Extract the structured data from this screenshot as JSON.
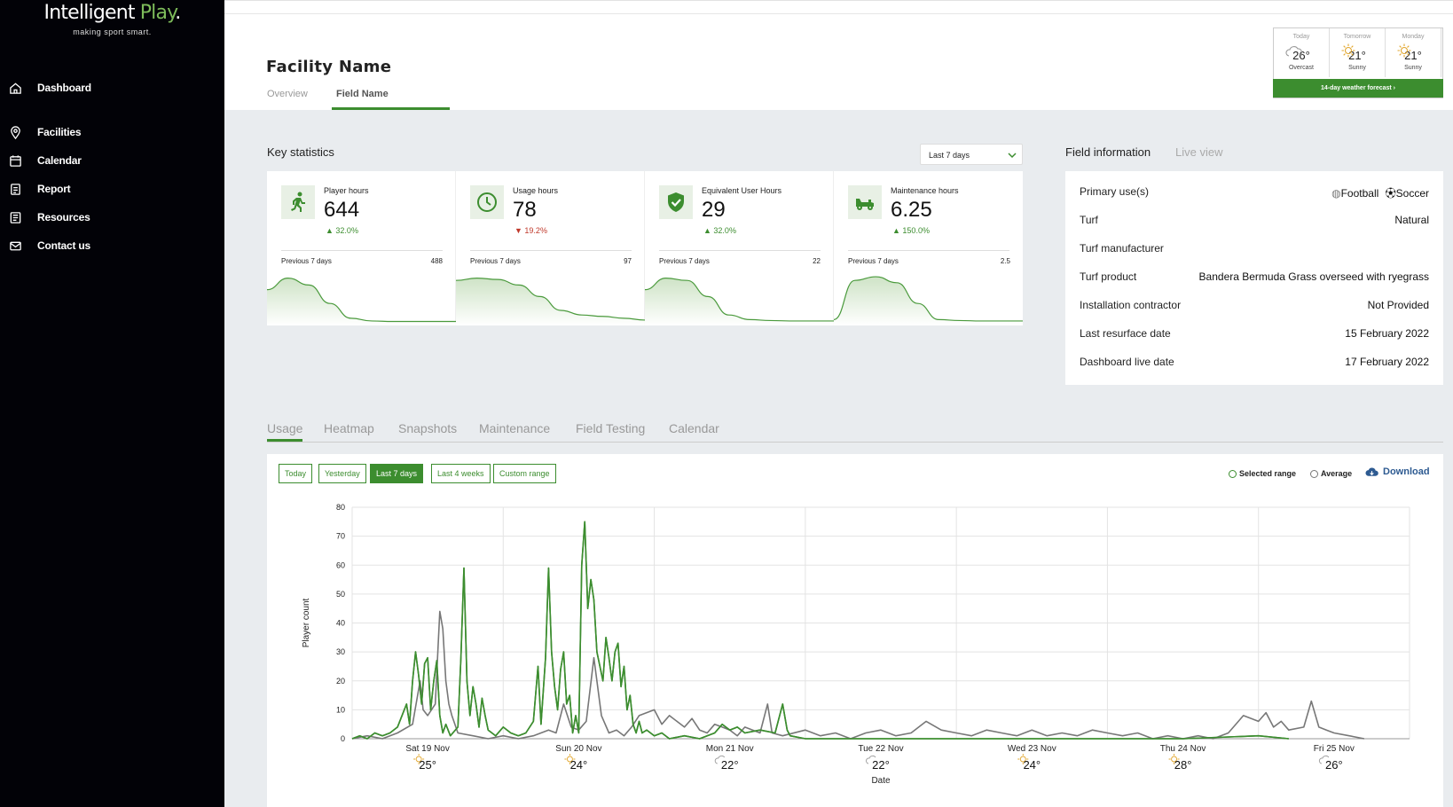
{
  "brand": {
    "name_main": "Intelligent",
    "name_accent": "Play",
    "name_dot": ".",
    "tagline": "making sport smart."
  },
  "nav": [
    {
      "label": "Dashboard",
      "icon": "home-icon"
    },
    {
      "label": "Facilities",
      "icon": "map-pin-icon"
    },
    {
      "label": "Calendar",
      "icon": "calendar-icon"
    },
    {
      "label": "Report",
      "icon": "report-icon"
    },
    {
      "label": "Resources",
      "icon": "resources-icon"
    },
    {
      "label": "Contact us",
      "icon": "mail-icon"
    }
  ],
  "header": {
    "facility_name": "Facility Name",
    "tabs": [
      {
        "label": "Overview"
      },
      {
        "label": "Field Name"
      }
    ],
    "active_tab": "Field Name"
  },
  "weather": {
    "days": [
      {
        "day": "Today",
        "temp": "26°",
        "condition": "Overcast",
        "icon": "cloud-icon"
      },
      {
        "day": "Tomorrow",
        "temp": "21°",
        "condition": "Sunny",
        "icon": "sun-icon"
      },
      {
        "day": "Monday",
        "temp": "21°",
        "condition": "Sunny",
        "icon": "sun-icon"
      }
    ],
    "forecast_button": "14-day weather forecast ›"
  },
  "key_statistics": {
    "title": "Key statistics",
    "range_select": "Last 7 days",
    "cards": [
      {
        "label": "Player hours",
        "value": "644",
        "delta": "32.0%",
        "delta_dir": "up",
        "prev_label": "Previous 7 days",
        "prev_value": "488",
        "icon": "running-person-icon"
      },
      {
        "label": "Usage hours",
        "value": "78",
        "delta": "19.2%",
        "delta_dir": "down",
        "prev_label": "Previous 7 days",
        "prev_value": "97",
        "icon": "clock-icon"
      },
      {
        "label": "Equivalent User Hours",
        "value": "29",
        "delta": "32.0%",
        "delta_dir": "up",
        "prev_label": "Previous 7 days",
        "prev_value": "22",
        "icon": "shield-check-icon"
      },
      {
        "label": "Maintenance hours",
        "value": "6.25",
        "delta": "150.0%",
        "delta_dir": "up",
        "prev_label": "Previous 7 days",
        "prev_value": "2.5",
        "icon": "mower-icon"
      }
    ]
  },
  "field_information": {
    "tabs": [
      {
        "label": "Field information"
      },
      {
        "label": "Live view"
      }
    ],
    "rows": [
      {
        "label": "Primary use(s)",
        "value": "",
        "uses": [
          "Football",
          "Soccer"
        ]
      },
      {
        "label": "Turf",
        "value": "Natural"
      },
      {
        "label": "Turf manufacturer",
        "value": ""
      },
      {
        "label": "Turf product",
        "value": "Bandera Bermuda Grass overseed with ryegrass"
      },
      {
        "label": "Installation contractor",
        "value": "Not Provided"
      },
      {
        "label": "Last resurface date",
        "value": "15 February 2022"
      },
      {
        "label": "Dashboard live date",
        "value": "17 February 2022"
      }
    ]
  },
  "lower_tabs": [
    {
      "label": "Usage"
    },
    {
      "label": "Heatmap"
    },
    {
      "label": "Snapshots"
    },
    {
      "label": "Maintenance"
    },
    {
      "label": "Field Testing"
    },
    {
      "label": "Calendar"
    }
  ],
  "usage": {
    "range_buttons": [
      {
        "label": "Today"
      },
      {
        "label": "Yesterday"
      },
      {
        "label": "Last 7 days",
        "active": true
      },
      {
        "label": "Last 4 weeks"
      },
      {
        "label": "Custom range"
      }
    ],
    "legend": [
      {
        "label": "Selected range",
        "color": "#3c8d2f"
      },
      {
        "label": "Average",
        "color": "#777777"
      }
    ],
    "download_label": "Download"
  },
  "chart_data": {
    "type": "line",
    "ylabel": "Player count",
    "xlabel": "Date",
    "ylim": [
      0,
      80
    ],
    "yticks": [
      0,
      10,
      20,
      30,
      40,
      50,
      60,
      70,
      80
    ],
    "x_categories": [
      "Sat 19 Nov",
      "Sun 20 Nov",
      "Mon 21 Nov",
      "Tue 22 Nov",
      "Wed 23 Nov",
      "Thu 24 Nov",
      "Fri 25 Nov"
    ],
    "x_temps": [
      {
        "temp": "25°",
        "icon": "sun-icon"
      },
      {
        "temp": "24°",
        "icon": "sun-icon"
      },
      {
        "temp": "22°",
        "icon": "cloud-icon"
      },
      {
        "temp": "22°",
        "icon": "cloud-icon"
      },
      {
        "temp": "24°",
        "icon": "sun-icon"
      },
      {
        "temp": "28°",
        "icon": "sun-icon"
      },
      {
        "temp": "26°",
        "icon": "cloud-icon"
      }
    ],
    "grid": true,
    "series": [
      {
        "name": "Selected range",
        "color": "#3c8d2f",
        "points": [
          [
            0,
            0
          ],
          [
            0.05,
            1
          ],
          [
            0.1,
            0
          ],
          [
            0.15,
            2
          ],
          [
            0.2,
            1
          ],
          [
            0.25,
            2
          ],
          [
            0.3,
            4
          ],
          [
            0.33,
            8
          ],
          [
            0.36,
            12
          ],
          [
            0.38,
            5
          ],
          [
            0.4,
            20
          ],
          [
            0.42,
            30
          ],
          [
            0.44,
            22
          ],
          [
            0.46,
            12
          ],
          [
            0.48,
            26
          ],
          [
            0.5,
            28
          ],
          [
            0.52,
            10
          ],
          [
            0.54,
            20
          ],
          [
            0.56,
            27
          ],
          [
            0.58,
            8
          ],
          [
            0.6,
            2
          ],
          [
            0.62,
            5
          ],
          [
            0.65,
            1
          ],
          [
            0.7,
            4
          ],
          [
            0.72,
            28
          ],
          [
            0.74,
            59
          ],
          [
            0.76,
            20
          ],
          [
            0.78,
            8
          ],
          [
            0.8,
            18
          ],
          [
            0.82,
            12
          ],
          [
            0.84,
            4
          ],
          [
            0.86,
            14
          ],
          [
            0.88,
            8
          ],
          [
            0.9,
            3
          ],
          [
            0.95,
            1
          ],
          [
            1.0,
            4
          ],
          [
            1.05,
            2
          ],
          [
            1.1,
            1
          ],
          [
            1.15,
            2
          ],
          [
            1.2,
            6
          ],
          [
            1.23,
            25
          ],
          [
            1.25,
            5
          ],
          [
            1.28,
            28
          ],
          [
            1.3,
            59
          ],
          [
            1.32,
            30
          ],
          [
            1.34,
            18
          ],
          [
            1.36,
            10
          ],
          [
            1.38,
            24
          ],
          [
            1.4,
            30
          ],
          [
            1.42,
            12
          ],
          [
            1.44,
            15
          ],
          [
            1.46,
            2
          ],
          [
            1.48,
            8
          ],
          [
            1.5,
            2
          ],
          [
            1.52,
            60
          ],
          [
            1.54,
            75
          ],
          [
            1.56,
            45
          ],
          [
            1.58,
            55
          ],
          [
            1.6,
            48
          ],
          [
            1.62,
            30
          ],
          [
            1.64,
            25
          ],
          [
            1.66,
            20
          ],
          [
            1.68,
            35
          ],
          [
            1.7,
            28
          ],
          [
            1.72,
            20
          ],
          [
            1.74,
            30
          ],
          [
            1.76,
            33
          ],
          [
            1.78,
            18
          ],
          [
            1.8,
            25
          ],
          [
            1.82,
            10
          ],
          [
            1.84,
            15
          ],
          [
            1.86,
            5
          ],
          [
            1.88,
            2
          ],
          [
            1.9,
            6
          ],
          [
            1.92,
            2
          ],
          [
            1.95,
            3
          ],
          [
            2.0,
            1
          ],
          [
            2.05,
            2
          ],
          [
            2.1,
            0
          ],
          [
            2.2,
            1
          ],
          [
            2.3,
            0
          ],
          [
            2.4,
            2
          ],
          [
            2.45,
            5
          ],
          [
            2.5,
            3
          ],
          [
            2.55,
            4
          ],
          [
            2.6,
            2
          ],
          [
            2.7,
            3
          ],
          [
            2.8,
            2
          ],
          [
            2.85,
            12
          ],
          [
            2.88,
            3
          ],
          [
            2.9,
            1
          ],
          [
            3.0,
            0
          ],
          [
            3.5,
            0
          ],
          [
            4.0,
            0
          ],
          [
            4.5,
            0
          ],
          [
            5.0,
            0
          ],
          [
            5.5,
            0
          ],
          [
            6.0,
            1
          ],
          [
            6.2,
            0
          ]
        ]
      },
      {
        "name": "Average",
        "color": "#777777",
        "points": [
          [
            0,
            0
          ],
          [
            0.1,
            1
          ],
          [
            0.2,
            0
          ],
          [
            0.3,
            2
          ],
          [
            0.4,
            5
          ],
          [
            0.45,
            20
          ],
          [
            0.47,
            10
          ],
          [
            0.5,
            8
          ],
          [
            0.55,
            12
          ],
          [
            0.58,
            44
          ],
          [
            0.6,
            38
          ],
          [
            0.62,
            20
          ],
          [
            0.64,
            12
          ],
          [
            0.66,
            8
          ],
          [
            0.7,
            2
          ],
          [
            0.8,
            1
          ],
          [
            0.9,
            0
          ],
          [
            1.0,
            1
          ],
          [
            1.1,
            0
          ],
          [
            1.2,
            1
          ],
          [
            1.3,
            3
          ],
          [
            1.35,
            2
          ],
          [
            1.4,
            12
          ],
          [
            1.45,
            4
          ],
          [
            1.5,
            3
          ],
          [
            1.55,
            6
          ],
          [
            1.6,
            28
          ],
          [
            1.65,
            8
          ],
          [
            1.7,
            2
          ],
          [
            1.75,
            3
          ],
          [
            1.8,
            1
          ],
          [
            1.85,
            4
          ],
          [
            1.9,
            8
          ],
          [
            2.0,
            10
          ],
          [
            2.05,
            5
          ],
          [
            2.1,
            8
          ],
          [
            2.15,
            6
          ],
          [
            2.2,
            4
          ],
          [
            2.25,
            7
          ],
          [
            2.3,
            3
          ],
          [
            2.35,
            2
          ],
          [
            2.4,
            5
          ],
          [
            2.45,
            4
          ],
          [
            2.5,
            3
          ],
          [
            2.55,
            1
          ],
          [
            2.6,
            4
          ],
          [
            2.7,
            2
          ],
          [
            2.75,
            12
          ],
          [
            2.78,
            2
          ],
          [
            2.85,
            1
          ],
          [
            3.0,
            3
          ],
          [
            3.1,
            1
          ],
          [
            3.2,
            2
          ],
          [
            3.3,
            0
          ],
          [
            3.4,
            2
          ],
          [
            3.5,
            3
          ],
          [
            3.6,
            1
          ],
          [
            3.7,
            2
          ],
          [
            3.8,
            6
          ],
          [
            3.9,
            3
          ],
          [
            4.0,
            2
          ],
          [
            4.1,
            1
          ],
          [
            4.2,
            3
          ],
          [
            4.3,
            2
          ],
          [
            4.4,
            1
          ],
          [
            4.5,
            3
          ],
          [
            4.6,
            1
          ],
          [
            4.7,
            2
          ],
          [
            4.8,
            1
          ],
          [
            4.9,
            3
          ],
          [
            5.0,
            2
          ],
          [
            5.1,
            1
          ],
          [
            5.2,
            2
          ],
          [
            5.3,
            0
          ],
          [
            5.4,
            1
          ],
          [
            5.5,
            0
          ],
          [
            5.6,
            1
          ],
          [
            5.7,
            0
          ],
          [
            5.8,
            2
          ],
          [
            5.9,
            8
          ],
          [
            6.0,
            6
          ],
          [
            6.05,
            9
          ],
          [
            6.1,
            4
          ],
          [
            6.15,
            6
          ],
          [
            6.2,
            3
          ],
          [
            6.3,
            4
          ],
          [
            6.35,
            13
          ],
          [
            6.4,
            4
          ],
          [
            6.45,
            3
          ],
          [
            6.5,
            2
          ],
          [
            6.6,
            1
          ],
          [
            6.7,
            0
          ]
        ]
      }
    ]
  },
  "sparklines": [
    [
      0.7,
      0.95,
      0.8,
      0.4,
      0.08,
      0.02,
      0.01,
      0.01,
      0.01,
      0.01
    ],
    [
      0.9,
      0.95,
      0.92,
      0.8,
      0.55,
      0.25,
      0.15,
      0.12,
      0.08,
      0.04
    ],
    [
      0.7,
      0.95,
      0.9,
      0.55,
      0.15,
      0.05,
      0.03,
      0.02,
      0.02,
      0.02
    ],
    [
      0.05,
      0.9,
      0.98,
      0.85,
      0.4,
      0.05,
      0.03,
      0.02,
      0.02,
      0.02
    ]
  ]
}
